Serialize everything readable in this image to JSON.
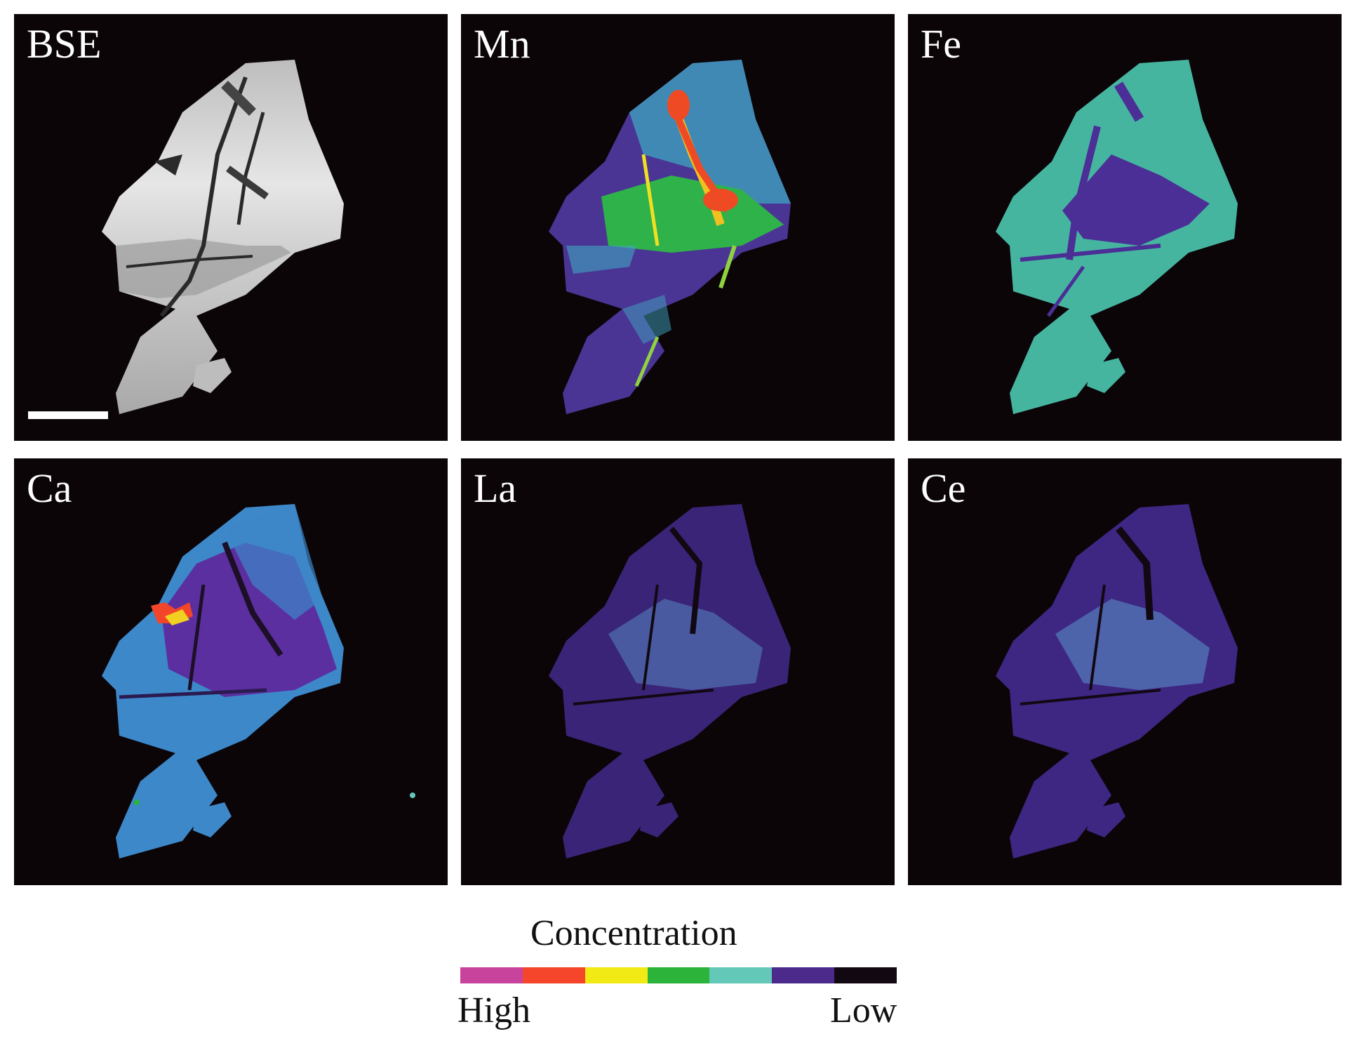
{
  "panels": [
    {
      "label": "BSE",
      "map": "bse"
    },
    {
      "label": "Mn",
      "map": "mn"
    },
    {
      "label": "Fe",
      "map": "fe"
    },
    {
      "label": "Ca",
      "map": "ca"
    },
    {
      "label": "La",
      "map": "la"
    },
    {
      "label": "Ce",
      "map": "ce"
    }
  ],
  "legend": {
    "title": "Concentration",
    "high_label": "High",
    "low_label": "Low",
    "colors": [
      "#c8449c",
      "#f5452a",
      "#f2ea14",
      "#2bb33a",
      "#63c8b8",
      "#4b2a8c",
      "#120812"
    ]
  }
}
